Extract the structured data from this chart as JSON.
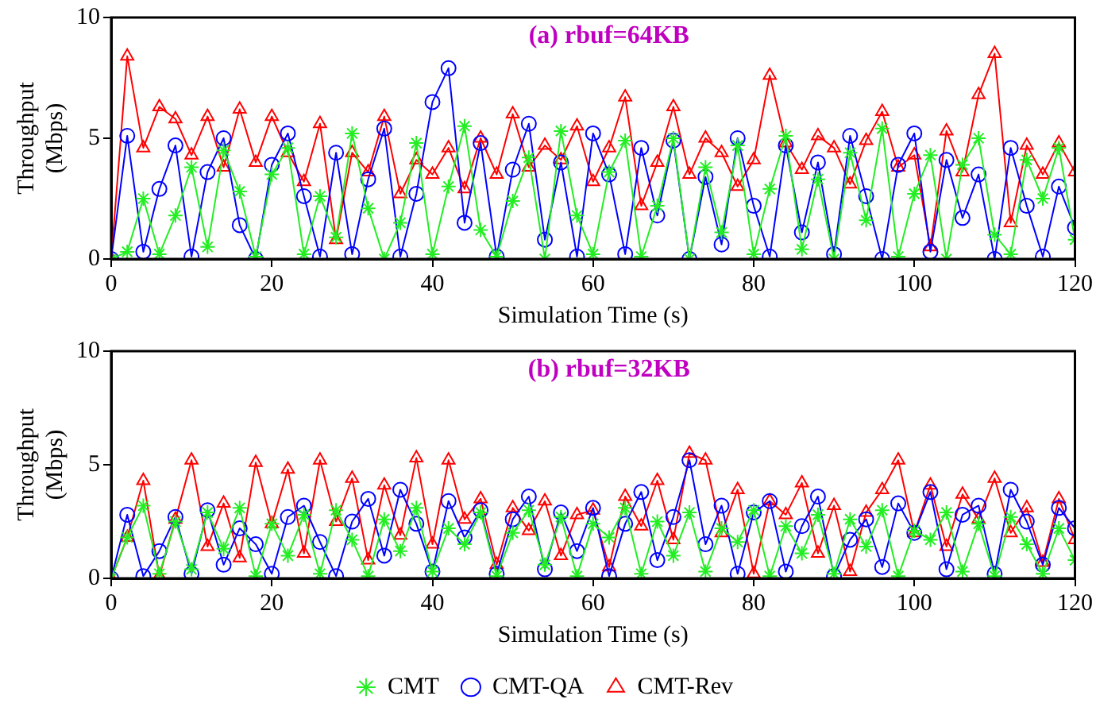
{
  "chart_data": [
    {
      "type": "line",
      "title": "(a) rbuf=64KB",
      "xlabel": "Simulation Time (s)",
      "ylabel": "Throughput (Mbps)",
      "x": [
        0,
        2,
        4,
        6,
        8,
        10,
        12,
        14,
        16,
        18,
        20,
        22,
        24,
        26,
        28,
        30,
        32,
        34,
        36,
        38,
        40,
        42,
        44,
        46,
        48,
        50,
        52,
        54,
        56,
        58,
        60,
        62,
        64,
        66,
        68,
        70,
        72,
        74,
        76,
        78,
        80,
        82,
        84,
        86,
        88,
        90,
        92,
        94,
        96,
        98,
        100,
        102,
        104,
        106,
        108,
        110,
        112,
        114,
        116,
        118,
        120
      ],
      "series": [
        {
          "color": "#22ee22",
          "marker": "cross",
          "values": [
            0,
            0.3,
            2.5,
            0.2,
            1.8,
            3.8,
            0.5,
            4.5,
            2.8,
            0.1,
            3.5,
            4.6,
            0.2,
            2.6,
            0.9,
            5.2,
            2.1,
            0,
            1.5,
            4.8,
            0.2,
            3.0,
            5.5,
            1.2,
            0.1,
            2.4,
            4.2,
            0,
            5.3,
            1.8,
            0.2,
            3.6,
            4.9,
            0.1,
            2.2,
            5.0,
            0,
            3.8,
            1.1,
            4.7,
            0.2,
            2.9,
            5.1,
            0.4,
            3.3,
            0,
            4.4,
            1.6,
            5.4,
            0.1,
            2.7,
            4.3,
            0,
            3.9,
            5.0,
            1.0,
            0.2,
            4.1,
            2.5,
            4.6,
            0.8
          ]
        },
        {
          "color": "#0000ff",
          "marker": "circle",
          "values": [
            0,
            5.1,
            0.3,
            2.9,
            4.7,
            0.1,
            3.6,
            5.0,
            1.4,
            0,
            3.9,
            5.2,
            2.6,
            0.1,
            4.4,
            0.2,
            3.3,
            5.4,
            0.1,
            2.7,
            6.5,
            7.9,
            1.5,
            4.8,
            0.1,
            3.7,
            5.6,
            0.8,
            4.0,
            0.1,
            5.2,
            3.5,
            0.2,
            4.6,
            1.8,
            4.9,
            0,
            3.4,
            0.6,
            5.0,
            2.2,
            0.1,
            4.7,
            1.1,
            4.0,
            0.2,
            5.1,
            2.6,
            0,
            3.9,
            5.2,
            0.3,
            4.1,
            1.7,
            3.5,
            0,
            4.6,
            2.2,
            0.1,
            3.0,
            1.3
          ]
        },
        {
          "color": "#ff0000",
          "marker": "triangle",
          "values": [
            0,
            8.4,
            4.6,
            6.3,
            5.8,
            4.3,
            5.9,
            3.8,
            6.2,
            4.0,
            5.9,
            4.4,
            3.2,
            5.6,
            0.8,
            4.4,
            3.6,
            5.9,
            2.7,
            4.1,
            3.5,
            4.6,
            2.9,
            5.0,
            3.5,
            6.0,
            3.8,
            4.7,
            4.1,
            5.5,
            3.2,
            4.6,
            6.7,
            2.2,
            4.0,
            6.3,
            3.5,
            5.0,
            4.4,
            3.0,
            4.1,
            7.6,
            4.8,
            3.7,
            5.1,
            4.6,
            3.1,
            4.9,
            6.1,
            3.8,
            4.3,
            0.5,
            5.3,
            3.6,
            6.8,
            8.5,
            1.5,
            4.7,
            3.5,
            4.8,
            3.6
          ]
        }
      ],
      "xlim": [
        0,
        120
      ],
      "xticks": [
        0,
        20,
        40,
        60,
        80,
        100,
        120
      ],
      "ylim": [
        0,
        10
      ],
      "yticks": [
        0,
        5,
        10
      ],
      "grid": false,
      "legend": false
    },
    {
      "type": "line",
      "title": "(b) rbuf=32KB",
      "xlabel": "Simulation Time (s)",
      "ylabel": "Throughput (Mbps)",
      "x": [
        0,
        2,
        4,
        6,
        8,
        10,
        12,
        14,
        16,
        18,
        20,
        22,
        24,
        26,
        28,
        30,
        32,
        34,
        36,
        38,
        40,
        42,
        44,
        46,
        48,
        50,
        52,
        54,
        56,
        58,
        60,
        62,
        64,
        66,
        68,
        70,
        72,
        74,
        76,
        78,
        80,
        82,
        84,
        86,
        88,
        90,
        92,
        94,
        96,
        98,
        100,
        102,
        104,
        106,
        108,
        110,
        112,
        114,
        116,
        118,
        120
      ],
      "series": [
        {
          "name": "CMT",
          "color": "#22ee22",
          "marker": "cross",
          "values": [
            0,
            1.8,
            3.2,
            0.2,
            2.5,
            0.4,
            2.9,
            1.3,
            3.1,
            0.1,
            2.4,
            1.0,
            2.8,
            0.2,
            3.0,
            1.7,
            0.1,
            2.6,
            1.2,
            3.1,
            0.3,
            2.2,
            1.5,
            2.9,
            0.1,
            2.0,
            3.0,
            0.6,
            2.7,
            0.1,
            2.4,
            1.8,
            3.1,
            0.2,
            2.5,
            1.0,
            2.9,
            0.3,
            2.2,
            1.6,
            3.0,
            0.1,
            2.3,
            1.1,
            2.8,
            0.2,
            2.6,
            1.4,
            3.0,
            0.1,
            2.1,
            1.7,
            2.9,
            0.3,
            2.4,
            0.1,
            2.7,
            1.5,
            0.2,
            2.2,
            0.8
          ]
        },
        {
          "name": "CMT-QA",
          "color": "#0000ff",
          "marker": "circle",
          "values": [
            0,
            2.8,
            0.1,
            1.2,
            2.7,
            0.2,
            3.0,
            0.6,
            2.2,
            1.5,
            0.2,
            2.7,
            3.2,
            1.6,
            0.1,
            2.5,
            3.5,
            1.0,
            3.9,
            2.4,
            0.3,
            3.4,
            1.8,
            3.0,
            0.2,
            2.6,
            3.6,
            0.4,
            2.9,
            1.2,
            3.1,
            0.1,
            2.4,
            3.8,
            0.8,
            2.7,
            5.2,
            1.5,
            3.2,
            0.2,
            2.9,
            3.4,
            0.3,
            2.3,
            3.6,
            0.1,
            1.7,
            2.6,
            0.5,
            3.3,
            2.0,
            3.8,
            0.4,
            2.8,
            3.2,
            0.2,
            3.9,
            2.5,
            0.6,
            3.1,
            2.2
          ]
        },
        {
          "name": "CMT-Rev",
          "color": "#ff0000",
          "marker": "triangle",
          "values": [
            0,
            1.8,
            4.3,
            0.1,
            2.6,
            5.2,
            1.4,
            3.3,
            0.9,
            5.1,
            2.4,
            4.8,
            1.1,
            5.2,
            2.5,
            4.4,
            0.8,
            4.1,
            1.9,
            5.3,
            1.5,
            5.2,
            2.6,
            3.5,
            0.6,
            3.1,
            2.1,
            3.4,
            1.0,
            2.8,
            3.0,
            0.5,
            3.6,
            2.3,
            4.3,
            1.7,
            5.5,
            5.2,
            2.0,
            3.9,
            0.2,
            3.4,
            2.8,
            4.2,
            1.1,
            3.2,
            0.3,
            2.9,
            3.9,
            5.2,
            2.0,
            4.1,
            1.4,
            3.7,
            2.6,
            4.4,
            2.0,
            3.1,
            0.7,
            3.5,
            1.7
          ]
        }
      ],
      "xlim": [
        0,
        120
      ],
      "xticks": [
        0,
        20,
        40,
        60,
        80,
        100,
        120
      ],
      "ylim": [
        0,
        10
      ],
      "yticks": [
        0,
        5,
        10
      ],
      "grid": false,
      "legend": "bottom"
    }
  ]
}
